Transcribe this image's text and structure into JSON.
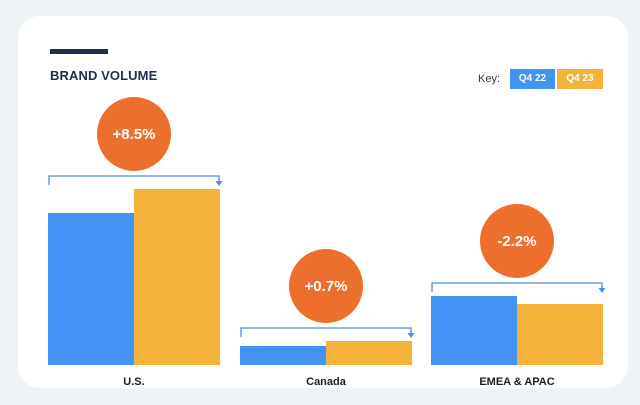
{
  "title": "BRAND VOLUME",
  "key": {
    "label": "Key:",
    "items": [
      "Q4 22",
      "Q4 23"
    ]
  },
  "colors": {
    "q4_22": "#4293f4",
    "q4_23": "#f4b23b",
    "bubble": "#ec6f2d",
    "bracket": "#4a8fe0",
    "title": "#1d2f4c"
  },
  "chart_data": {
    "type": "bar",
    "title": "BRAND VOLUME",
    "categories": [
      "U.S.",
      "Canada",
      "EMEA & APAC"
    ],
    "series": [
      {
        "name": "Q4 22",
        "values": [
          152,
          19,
          69
        ]
      },
      {
        "name": "Q4 23",
        "values": [
          176,
          24,
          61
        ]
      }
    ],
    "annotations": [
      "+8.5%",
      "+0.7%",
      "-2.2%"
    ],
    "ylim": [
      0,
      180
    ],
    "xlabel": "",
    "ylabel": "",
    "grid": false,
    "legend": "top-right"
  }
}
